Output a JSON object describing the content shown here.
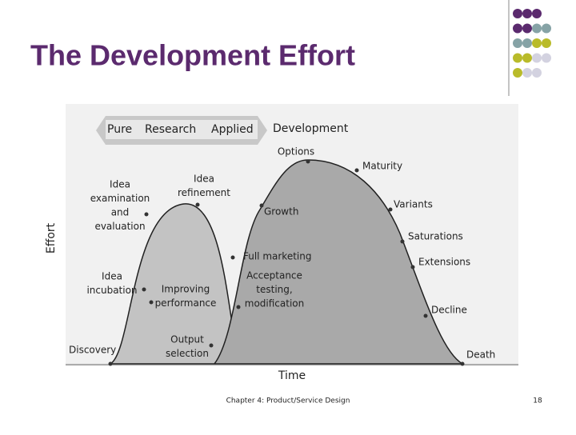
{
  "header": {
    "title": "The Development Effort"
  },
  "diagram": {
    "banner": [
      "Pure",
      "Research",
      "Applied"
    ],
    "phase": "Development",
    "y_axis": "Effort",
    "x_axis": "Time",
    "labels": [
      {
        "lines": [
          "Idea",
          "examination",
          "and",
          "evaluation"
        ]
      },
      {
        "lines": [
          "Idea",
          "refinement"
        ]
      },
      {
        "lines": [
          "Idea",
          "incubation"
        ]
      },
      {
        "lines": [
          "Improving",
          "performance"
        ]
      },
      {
        "lines": [
          "Output",
          "selection"
        ]
      },
      {
        "lines": [
          "Discovery"
        ]
      },
      {
        "lines": [
          "Options"
        ]
      },
      {
        "lines": [
          "Maturity"
        ]
      },
      {
        "lines": [
          "Growth"
        ]
      },
      {
        "lines": [
          "Variants"
        ]
      },
      {
        "lines": [
          "Saturations"
        ]
      },
      {
        "lines": [
          "Full marketing"
        ]
      },
      {
        "lines": [
          "Extensions"
        ]
      },
      {
        "lines": [
          "Acceptance",
          "testing,",
          "modification"
        ]
      },
      {
        "lines": [
          "Decline"
        ]
      },
      {
        "lines": [
          "Death"
        ]
      }
    ]
  },
  "footer": {
    "text": "Chapter 4: Product/Service Design",
    "page_number": "18"
  }
}
